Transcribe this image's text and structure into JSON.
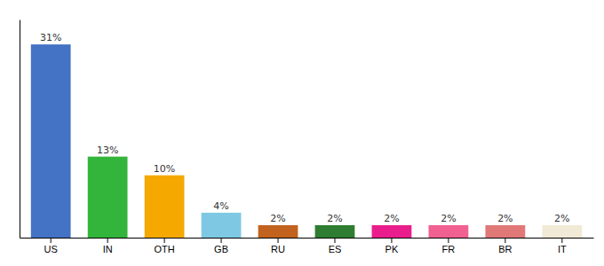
{
  "chart_data": {
    "type": "bar",
    "categories": [
      "US",
      "IN",
      "OTH",
      "GB",
      "RU",
      "ES",
      "PK",
      "FR",
      "BR",
      "IT"
    ],
    "values": [
      31,
      13,
      10,
      4,
      2,
      2,
      2,
      2,
      2,
      2
    ],
    "value_labels": [
      "31%",
      "13%",
      "10%",
      "4%",
      "2%",
      "2%",
      "2%",
      "2%",
      "2%",
      "2%"
    ],
    "data_labels": true,
    "colors": [
      "#4472c4",
      "#33b53b",
      "#f5a800",
      "#7ec8e3",
      "#c1621f",
      "#2e7d32",
      "#e91e8c",
      "#f06090",
      "#e07878",
      "#f0ead6"
    ],
    "ylim": [
      0,
      35
    ],
    "tick_labels": "x",
    "grid": false
  }
}
